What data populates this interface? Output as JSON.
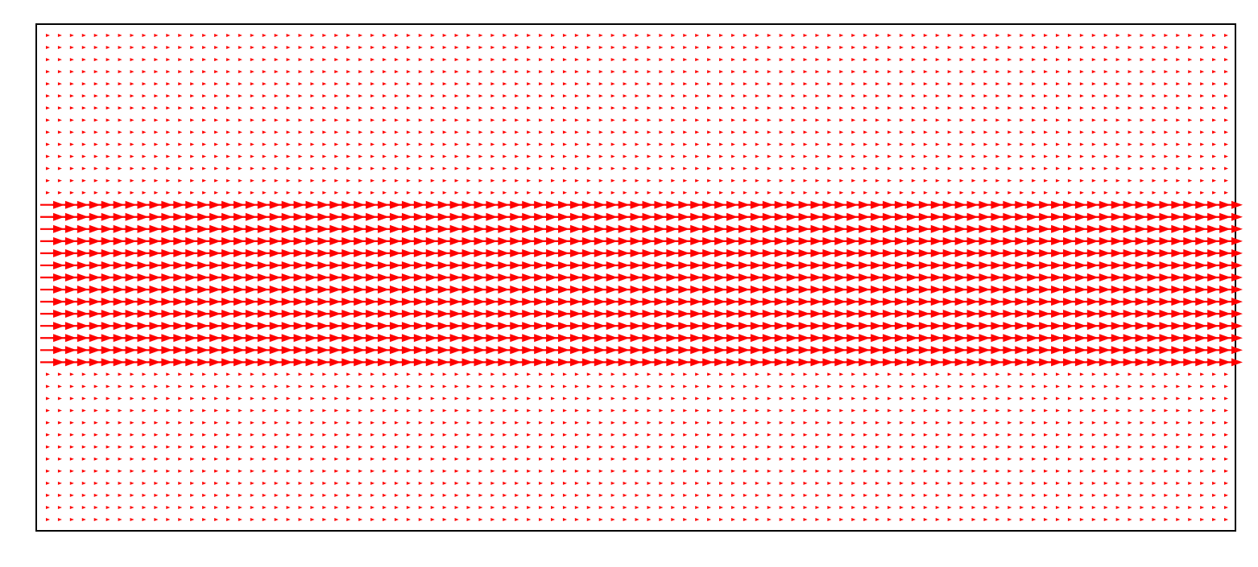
{
  "chart_data": {
    "type": "quiver",
    "title": "",
    "xlabel": "",
    "ylabel": "",
    "grid": false,
    "legend": "none",
    "axis_ticks": false,
    "xlim": [
      0,
      1
    ],
    "ylim": [
      0,
      1
    ],
    "columns": 99,
    "rows": 41,
    "u_by_row": [
      0.1,
      0.1,
      0.1,
      0.1,
      0.1,
      0.1,
      0.1,
      0.1,
      0.1,
      0.1,
      0.1,
      0.1,
      0.1,
      0.1,
      1.0,
      1.0,
      1.0,
      1.0,
      1.0,
      1.0,
      1.0,
      1.0,
      1.0,
      1.0,
      1.0,
      1.0,
      1.0,
      1.0,
      0.1,
      0.1,
      0.1,
      0.1,
      0.1,
      0.1,
      0.1,
      0.1,
      0.1,
      0.1,
      0.1,
      0.1,
      0.1
    ],
    "v_by_row": [
      0,
      0,
      0,
      0,
      0,
      0,
      0,
      0,
      0,
      0,
      0,
      0,
      0,
      0,
      0,
      0,
      0,
      0,
      0,
      0,
      0,
      0,
      0,
      0,
      0,
      0,
      0,
      0,
      0,
      0,
      0,
      0,
      0,
      0,
      0,
      0,
      0,
      0,
      0,
      0,
      0
    ],
    "arrow_color": "#ff0000",
    "frame_color": "#000000"
  }
}
